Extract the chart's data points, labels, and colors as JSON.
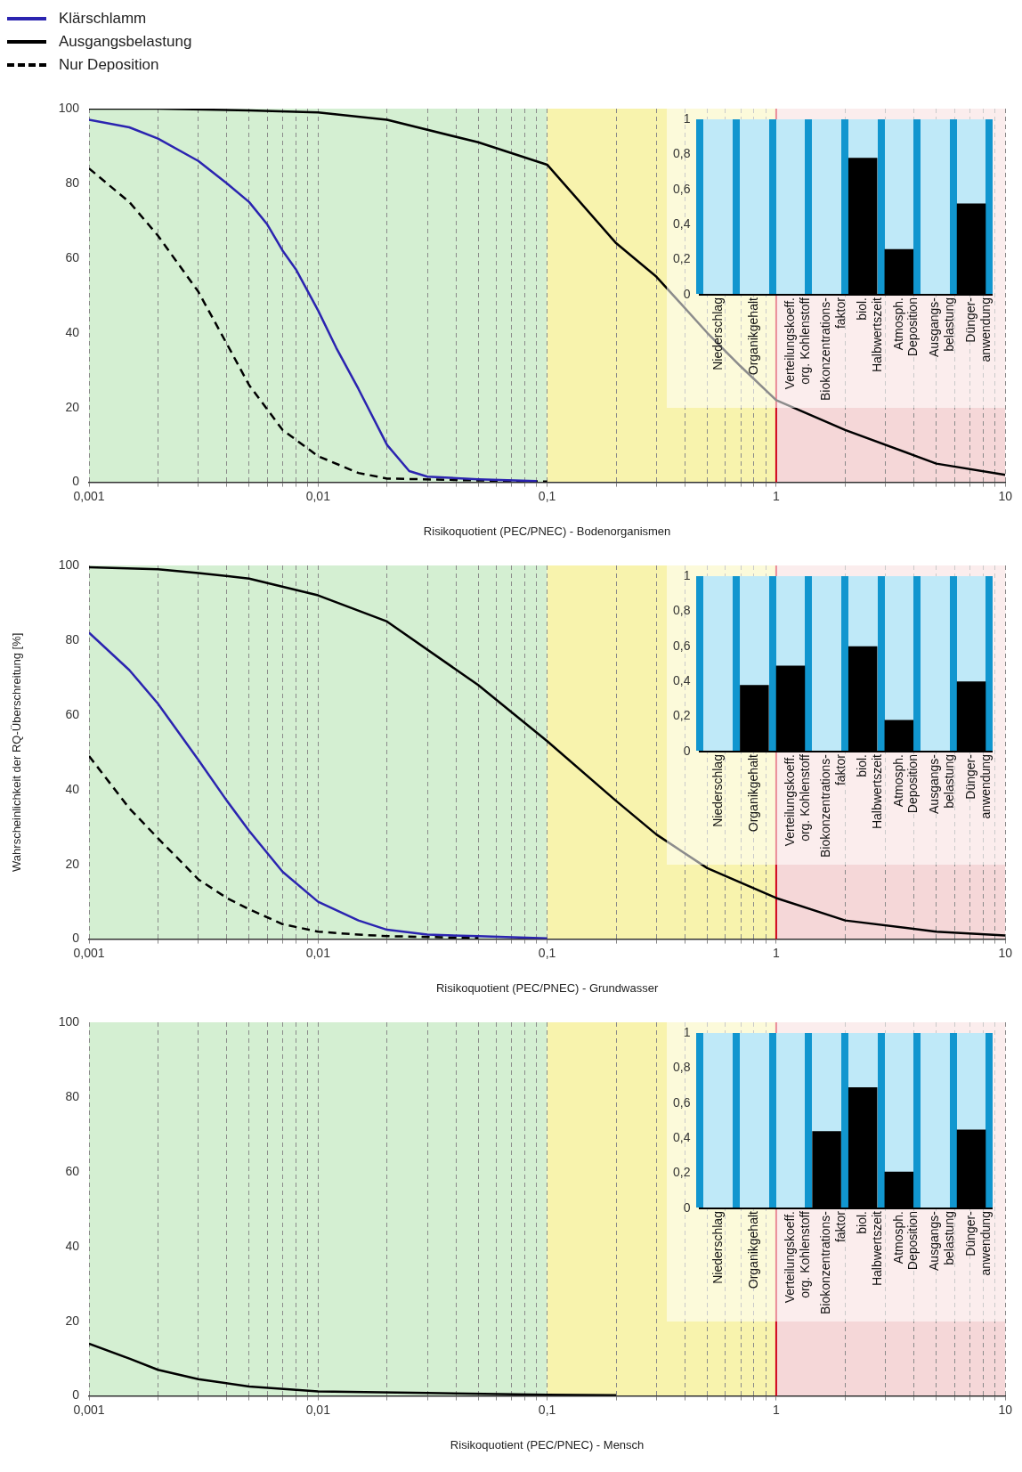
{
  "chart_data": [
    {
      "type": "line",
      "xlabel": "Risikoquotient (PEC/PNEC) - Bodenorganismen",
      "log": "x",
      "grid": "x",
      "legend": "top left",
      "xlim": [
        0.001,
        10
      ],
      "ylim": [
        0,
        100
      ],
      "xticks": [
        {
          "value": 0.001,
          "label": "0,001"
        },
        {
          "value": 0.002,
          "label": null
        },
        {
          "value": 0.003,
          "label": null
        },
        {
          "value": 0.004,
          "label": null
        },
        {
          "value": 0.005,
          "label": null
        },
        {
          "value": 0.006,
          "label": null
        },
        {
          "value": 0.007,
          "label": null
        },
        {
          "value": 0.008,
          "label": null
        },
        {
          "value": 0.009,
          "label": null
        },
        {
          "value": 0.01,
          "label": "0,01"
        },
        {
          "value": 0.02,
          "label": null
        },
        {
          "value": 0.03,
          "label": null
        },
        {
          "value": 0.04,
          "label": null
        },
        {
          "value": 0.05,
          "label": null
        },
        {
          "value": 0.06,
          "label": null
        },
        {
          "value": 0.07,
          "label": null
        },
        {
          "value": 0.08,
          "label": null
        },
        {
          "value": 0.09,
          "label": null
        },
        {
          "value": 0.1,
          "label": "0,1"
        },
        {
          "value": 0.2,
          "label": null
        },
        {
          "value": 0.3,
          "label": null
        },
        {
          "value": 0.4,
          "label": null
        },
        {
          "value": 0.5,
          "label": null
        },
        {
          "value": 0.6,
          "label": null
        },
        {
          "value": 0.7,
          "label": null
        },
        {
          "value": 0.8,
          "label": null
        },
        {
          "value": 0.9,
          "label": null
        },
        {
          "value": 1,
          "label": "1"
        },
        {
          "value": 2,
          "label": null
        },
        {
          "value": 3,
          "label": null
        },
        {
          "value": 4,
          "label": null
        },
        {
          "value": 5,
          "label": null
        },
        {
          "value": 6,
          "label": null
        },
        {
          "value": 7,
          "label": null
        },
        {
          "value": 8,
          "label": null
        },
        {
          "value": 9,
          "label": null
        },
        {
          "value": 10,
          "label": "10"
        }
      ],
      "yticks": [
        0,
        20,
        40,
        60,
        80,
        100
      ],
      "bands": [
        {
          "axis": "x",
          "from": 0.001,
          "to": 0.1,
          "color": "#d4efd2"
        },
        {
          "axis": "x",
          "from": 0.1,
          "to": 1,
          "color": "#f8f3ad"
        },
        {
          "axis": "x",
          "from": 1,
          "to": 10,
          "color": "#f5d7d8"
        }
      ],
      "ref_lines": [
        {
          "axis": "x",
          "value": 1,
          "color": "#d0021b"
        }
      ],
      "series": [
        {
          "name": "Klärschlamm",
          "color": "#2b24b0",
          "line_style": "solid",
          "x": [
            0.001,
            0.0015,
            0.002,
            0.003,
            0.004,
            0.005,
            0.006,
            0.007,
            0.008,
            0.01,
            0.012,
            0.015,
            0.02,
            0.025,
            0.03,
            0.05,
            0.09
          ],
          "values": [
            97,
            95,
            92,
            86,
            80,
            75,
            69,
            62,
            57,
            46,
            36,
            25,
            10,
            3,
            1.5,
            0.8,
            0.3
          ]
        },
        {
          "name": "Ausgangsbelastung",
          "color": "#000000",
          "line_style": "solid",
          "x": [
            0.001,
            0.002,
            0.005,
            0.01,
            0.02,
            0.05,
            0.1,
            0.2,
            0.3,
            0.5,
            0.7,
            1,
            2,
            5,
            10
          ],
          "values": [
            100,
            100,
            99.5,
            99,
            97,
            91,
            85,
            64,
            55,
            40,
            31,
            22,
            14,
            5,
            2
          ]
        },
        {
          "name": "Nur Deposition",
          "color": "#000000",
          "line_style": "dashed",
          "x": [
            0.001,
            0.0015,
            0.002,
            0.003,
            0.004,
            0.005,
            0.007,
            0.01,
            0.015,
            0.02,
            0.05,
            0.1
          ],
          "values": [
            84,
            75,
            66,
            51,
            37,
            26,
            14,
            7,
            2.5,
            1,
            0.5,
            0.2
          ]
        }
      ]
    },
    {
      "type": "bar",
      "categories": [
        "Niederschlag",
        "Organikgehalt",
        "Verteilungskoeff. org. Kohlenstoff",
        "Biokonzentrations- faktor",
        "biol. Halbwertszeit",
        "Atmosph. Deposition",
        "Ausgangs- belastung",
        "Dünger- anwendung"
      ],
      "values": [
        0,
        0,
        0,
        0,
        0.78,
        0.26,
        0,
        0.52
      ],
      "color": "#000000",
      "ylim": [
        0,
        1
      ],
      "yticks": [
        0,
        {
          "value": 0.2,
          "label": "0,2"
        },
        {
          "value": 0.4,
          "label": "0,4"
        },
        {
          "value": 0.6,
          "label": "0,6"
        },
        {
          "value": 0.8,
          "label": "0,8"
        },
        1
      ],
      "grid": "x"
    },
    {
      "type": "line",
      "xlabel": "Risikoquotient (PEC/PNEC) - Grundwasser",
      "ylabel": "Wahrscheinlichkeit der RQ-Überschreitung [%]",
      "log": "x",
      "grid": "x",
      "xlim": [
        0.001,
        10
      ],
      "ylim": [
        0,
        100
      ],
      "xticks": [
        {
          "value": 0.001,
          "label": "0,001"
        },
        {
          "value": 0.002,
          "label": null
        },
        {
          "value": 0.003,
          "label": null
        },
        {
          "value": 0.004,
          "label": null
        },
        {
          "value": 0.005,
          "label": null
        },
        {
          "value": 0.006,
          "label": null
        },
        {
          "value": 0.007,
          "label": null
        },
        {
          "value": 0.008,
          "label": null
        },
        {
          "value": 0.009,
          "label": null
        },
        {
          "value": 0.01,
          "label": "0,01"
        },
        {
          "value": 0.02,
          "label": null
        },
        {
          "value": 0.03,
          "label": null
        },
        {
          "value": 0.04,
          "label": null
        },
        {
          "value": 0.05,
          "label": null
        },
        {
          "value": 0.06,
          "label": null
        },
        {
          "value": 0.07,
          "label": null
        },
        {
          "value": 0.08,
          "label": null
        },
        {
          "value": 0.09,
          "label": null
        },
        {
          "value": 0.1,
          "label": "0,1"
        },
        {
          "value": 0.2,
          "label": null
        },
        {
          "value": 0.3,
          "label": null
        },
        {
          "value": 0.4,
          "label": null
        },
        {
          "value": 0.5,
          "label": null
        },
        {
          "value": 0.6,
          "label": null
        },
        {
          "value": 0.7,
          "label": null
        },
        {
          "value": 0.8,
          "label": null
        },
        {
          "value": 0.9,
          "label": null
        },
        {
          "value": 1,
          "label": "1"
        },
        {
          "value": 2,
          "label": null
        },
        {
          "value": 3,
          "label": null
        },
        {
          "value": 4,
          "label": null
        },
        {
          "value": 5,
          "label": null
        },
        {
          "value": 6,
          "label": null
        },
        {
          "value": 7,
          "label": null
        },
        {
          "value": 8,
          "label": null
        },
        {
          "value": 9,
          "label": null
        },
        {
          "value": 10,
          "label": "10"
        }
      ],
      "yticks": [
        0,
        20,
        40,
        60,
        80,
        100
      ],
      "bands": [
        {
          "axis": "x",
          "from": 0.001,
          "to": 0.1,
          "color": "#d4efd2"
        },
        {
          "axis": "x",
          "from": 0.1,
          "to": 1,
          "color": "#f8f3ad"
        },
        {
          "axis": "x",
          "from": 1,
          "to": 10,
          "color": "#f5d7d8"
        }
      ],
      "ref_lines": [
        {
          "axis": "x",
          "value": 1,
          "color": "#d0021b"
        }
      ],
      "series": [
        {
          "color": "#2b24b0",
          "line_style": "solid",
          "x": [
            0.001,
            0.0015,
            0.002,
            0.003,
            0.004,
            0.005,
            0.007,
            0.01,
            0.015,
            0.02,
            0.03,
            0.05,
            0.1
          ],
          "values": [
            82,
            72,
            63,
            48,
            37,
            29,
            18,
            10,
            5,
            2.5,
            1.2,
            0.8,
            0.2
          ]
        },
        {
          "color": "#000000",
          "line_style": "solid",
          "x": [
            0.001,
            0.002,
            0.003,
            0.005,
            0.01,
            0.02,
            0.05,
            0.1,
            0.2,
            0.3,
            0.5,
            1,
            2,
            5,
            10
          ],
          "values": [
            99.5,
            99,
            98,
            96.5,
            92,
            85,
            68,
            53,
            37,
            28,
            19,
            11,
            5,
            2,
            1
          ]
        },
        {
          "color": "#000000",
          "line_style": "dashed",
          "x": [
            0.001,
            0.0015,
            0.002,
            0.003,
            0.004,
            0.005,
            0.007,
            0.01,
            0.015,
            0.02,
            0.05
          ],
          "values": [
            49,
            35,
            27,
            16,
            11,
            8,
            4,
            2,
            1.2,
            0.8,
            0.3
          ]
        }
      ]
    },
    {
      "type": "bar",
      "categories": [
        "Niederschlag",
        "Organikgehalt",
        "Verteilungskoeff. org. Kohlenstoff",
        "Biokonzentrations- faktor",
        "biol. Halbwertszeit",
        "Atmosph. Deposition",
        "Ausgangs- belastung",
        "Dünger- anwendung"
      ],
      "values": [
        0,
        0.38,
        0.49,
        0,
        0.6,
        0.18,
        0,
        0.4
      ],
      "color": "#000000",
      "ylim": [
        0,
        1
      ],
      "yticks": [
        0,
        {
          "value": 0.2,
          "label": "0,2"
        },
        {
          "value": 0.4,
          "label": "0,4"
        },
        {
          "value": 0.6,
          "label": "0,6"
        },
        {
          "value": 0.8,
          "label": "0,8"
        },
        1
      ],
      "grid": "x"
    },
    {
      "type": "line",
      "xlabel": "Risikoquotient (PEC/PNEC) - Mensch",
      "log": "x",
      "grid": "x",
      "xlim": [
        0.001,
        10
      ],
      "ylim": [
        0,
        100
      ],
      "xticks": [
        {
          "value": 0.001,
          "label": "0,001"
        },
        {
          "value": 0.002,
          "label": null
        },
        {
          "value": 0.003,
          "label": null
        },
        {
          "value": 0.004,
          "label": null
        },
        {
          "value": 0.005,
          "label": null
        },
        {
          "value": 0.006,
          "label": null
        },
        {
          "value": 0.007,
          "label": null
        },
        {
          "value": 0.008,
          "label": null
        },
        {
          "value": 0.009,
          "label": null
        },
        {
          "value": 0.01,
          "label": "0,01"
        },
        {
          "value": 0.02,
          "label": null
        },
        {
          "value": 0.03,
          "label": null
        },
        {
          "value": 0.04,
          "label": null
        },
        {
          "value": 0.05,
          "label": null
        },
        {
          "value": 0.06,
          "label": null
        },
        {
          "value": 0.07,
          "label": null
        },
        {
          "value": 0.08,
          "label": null
        },
        {
          "value": 0.09,
          "label": null
        },
        {
          "value": 0.1,
          "label": "0,1"
        },
        {
          "value": 0.2,
          "label": null
        },
        {
          "value": 0.3,
          "label": null
        },
        {
          "value": 0.4,
          "label": null
        },
        {
          "value": 0.5,
          "label": null
        },
        {
          "value": 0.6,
          "label": null
        },
        {
          "value": 0.7,
          "label": null
        },
        {
          "value": 0.8,
          "label": null
        },
        {
          "value": 0.9,
          "label": null
        },
        {
          "value": 1,
          "label": "1"
        },
        {
          "value": 2,
          "label": null
        },
        {
          "value": 3,
          "label": null
        },
        {
          "value": 4,
          "label": null
        },
        {
          "value": 5,
          "label": null
        },
        {
          "value": 6,
          "label": null
        },
        {
          "value": 7,
          "label": null
        },
        {
          "value": 8,
          "label": null
        },
        {
          "value": 9,
          "label": null
        },
        {
          "value": 10,
          "label": "10"
        }
      ],
      "yticks": [
        0,
        20,
        40,
        60,
        80,
        100
      ],
      "bands": [
        {
          "axis": "x",
          "from": 0.001,
          "to": 0.1,
          "color": "#d4efd2"
        },
        {
          "axis": "x",
          "from": 0.1,
          "to": 1,
          "color": "#f8f3ad"
        },
        {
          "axis": "x",
          "from": 1,
          "to": 10,
          "color": "#f5d7d8"
        }
      ],
      "ref_lines": [
        {
          "axis": "x",
          "value": 1,
          "color": "#d0021b"
        }
      ],
      "series": [
        {
          "color": "#000000",
          "line_style": "solid",
          "x": [
            0.001,
            0.0015,
            0.002,
            0.003,
            0.005,
            0.01,
            0.03,
            0.1,
            0.2
          ],
          "values": [
            14,
            10,
            7,
            4.5,
            2.5,
            1.2,
            0.8,
            0.3,
            0.2
          ]
        }
      ]
    },
    {
      "type": "bar",
      "categories": [
        "Niederschlag",
        "Organikgehalt",
        "Verteilungskoeff. org. Kohlenstoff",
        "Biokonzentrations- faktor",
        "biol. Halbwertszeit",
        "Atmosph. Deposition",
        "Ausgangs- belastung",
        "Dünger- anwendung"
      ],
      "values": [
        0,
        0,
        0,
        0.44,
        0.69,
        0.21,
        0,
        0.45
      ],
      "color": "#000000",
      "ylim": [
        0,
        1
      ],
      "yticks": [
        0,
        {
          "value": 0.2,
          "label": "0,2"
        },
        {
          "value": 0.4,
          "label": "0,4"
        },
        {
          "value": 0.6,
          "label": "0,6"
        },
        {
          "value": 0.8,
          "label": "0,8"
        },
        1
      ],
      "grid": "x"
    }
  ]
}
